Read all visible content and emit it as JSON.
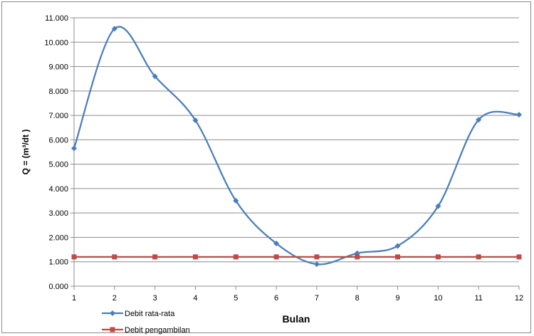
{
  "chart_data": {
    "type": "line",
    "title": "",
    "xlabel": "Bulan",
    "ylabel": "Q = (m³/dt )",
    "x": [
      1,
      2,
      3,
      4,
      5,
      6,
      7,
      8,
      9,
      10,
      11,
      12
    ],
    "x_tick_labels": [
      "1",
      "2",
      "3",
      "4",
      "5",
      "6",
      "7",
      "8",
      "9",
      "10",
      "11",
      "12"
    ],
    "xlim": [
      1,
      12
    ],
    "ylim": [
      0,
      11
    ],
    "y_ticks": [
      0,
      1,
      2,
      3,
      4,
      5,
      6,
      7,
      8,
      9,
      10,
      11
    ],
    "y_tick_labels": [
      "0.000",
      "1.000",
      "2.000",
      "3.000",
      "4.000",
      "5.000",
      "6.000",
      "7.000",
      "8.000",
      "9.000",
      "10.000",
      "11.000"
    ],
    "grid": "horizontal",
    "legend_position": "bottom-left",
    "series": [
      {
        "name": "Debit rata-rata",
        "color": "#4a7ebb",
        "marker": "diamond",
        "smooth": true,
        "values": [
          5.65,
          10.55,
          8.6,
          6.8,
          3.5,
          1.75,
          0.9,
          1.35,
          1.65,
          3.28,
          6.82,
          7.03
        ]
      },
      {
        "name": "Debit pengambilan",
        "color": "#be4b48",
        "marker": "square",
        "smooth": false,
        "values": [
          1.2,
          1.2,
          1.2,
          1.2,
          1.2,
          1.2,
          1.2,
          1.2,
          1.2,
          1.2,
          1.2,
          1.2
        ]
      }
    ]
  }
}
